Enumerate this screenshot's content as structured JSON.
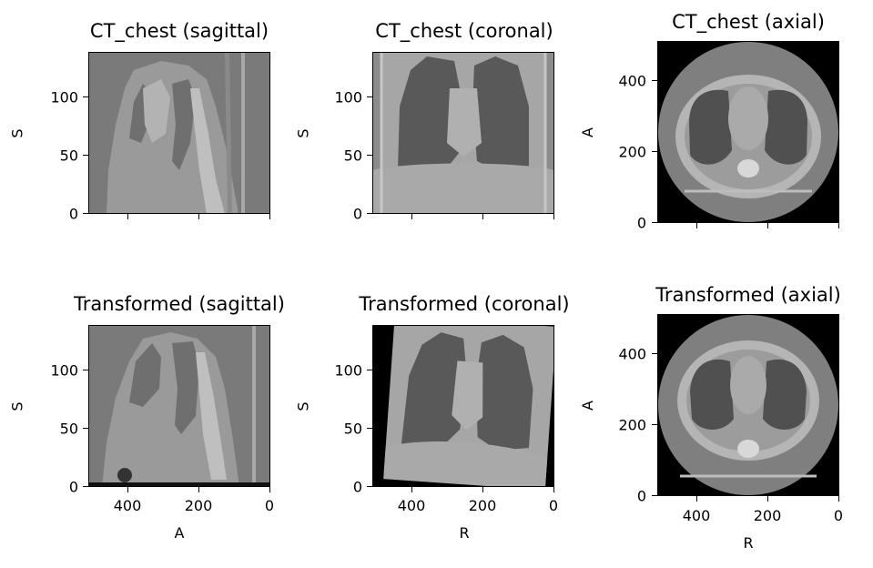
{
  "panels": [
    {
      "title": "CT_chest (sagittal)",
      "ylabel": "S",
      "xlabel": "",
      "view": "sagittal",
      "transformed": false,
      "yticks": [
        "0",
        "50",
        "100"
      ],
      "xticks": []
    },
    {
      "title": "CT_chest (coronal)",
      "ylabel": "S",
      "xlabel": "",
      "view": "coronal",
      "transformed": false,
      "yticks": [
        "0",
        "50",
        "100"
      ],
      "xticks": []
    },
    {
      "title": "CT_chest (axial)",
      "ylabel": "A",
      "xlabel": "",
      "view": "axial",
      "transformed": false,
      "yticks": [
        "0",
        "200",
        "400"
      ],
      "xticks": []
    },
    {
      "title": "Transformed (sagittal)",
      "ylabel": "S",
      "xlabel": "A",
      "view": "sagittal",
      "transformed": true,
      "yticks": [
        "0",
        "50",
        "100"
      ],
      "xticks": [
        "400",
        "200",
        "0"
      ]
    },
    {
      "title": "Transformed (coronal)",
      "ylabel": "S",
      "xlabel": "R",
      "view": "coronal",
      "transformed": true,
      "yticks": [
        "0",
        "50",
        "100"
      ],
      "xticks": [
        "400",
        "200",
        "0"
      ]
    },
    {
      "title": "Transformed (axial)",
      "ylabel": "A",
      "xlabel": "R",
      "view": "axial",
      "transformed": true,
      "yticks": [
        "0",
        "200",
        "400"
      ],
      "xticks": [
        "400",
        "200",
        "0"
      ]
    }
  ]
}
